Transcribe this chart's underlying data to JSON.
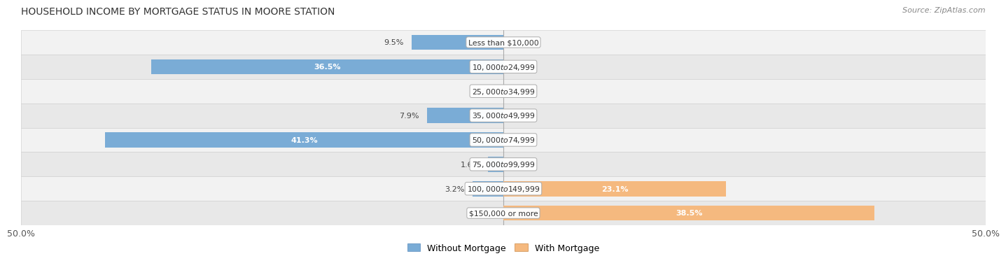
{
  "title": "HOUSEHOLD INCOME BY MORTGAGE STATUS IN MOORE STATION",
  "source": "Source: ZipAtlas.com",
  "categories": [
    "Less than $10,000",
    "$10,000 to $24,999",
    "$25,000 to $34,999",
    "$35,000 to $49,999",
    "$50,000 to $74,999",
    "$75,000 to $99,999",
    "$100,000 to $149,999",
    "$150,000 or more"
  ],
  "without_mortgage": [
    9.5,
    36.5,
    0.0,
    7.9,
    41.3,
    1.6,
    3.2,
    0.0
  ],
  "with_mortgage": [
    0.0,
    0.0,
    0.0,
    0.0,
    0.0,
    0.0,
    23.1,
    38.5
  ],
  "without_mortgage_color": "#7aacd6",
  "with_mortgage_color": "#f5b97f",
  "xlim": [
    -50,
    50
  ],
  "xticks_left": -50,
  "xticks_right": 50,
  "legend_without": "Without Mortgage",
  "legend_with": "With Mortgage",
  "bar_height": 0.62,
  "row_bg_colors": [
    "#f2f2f2",
    "#e8e8e8"
  ],
  "title_fontsize": 10,
  "source_fontsize": 8,
  "label_fontsize": 8,
  "cat_fontsize": 7.8
}
